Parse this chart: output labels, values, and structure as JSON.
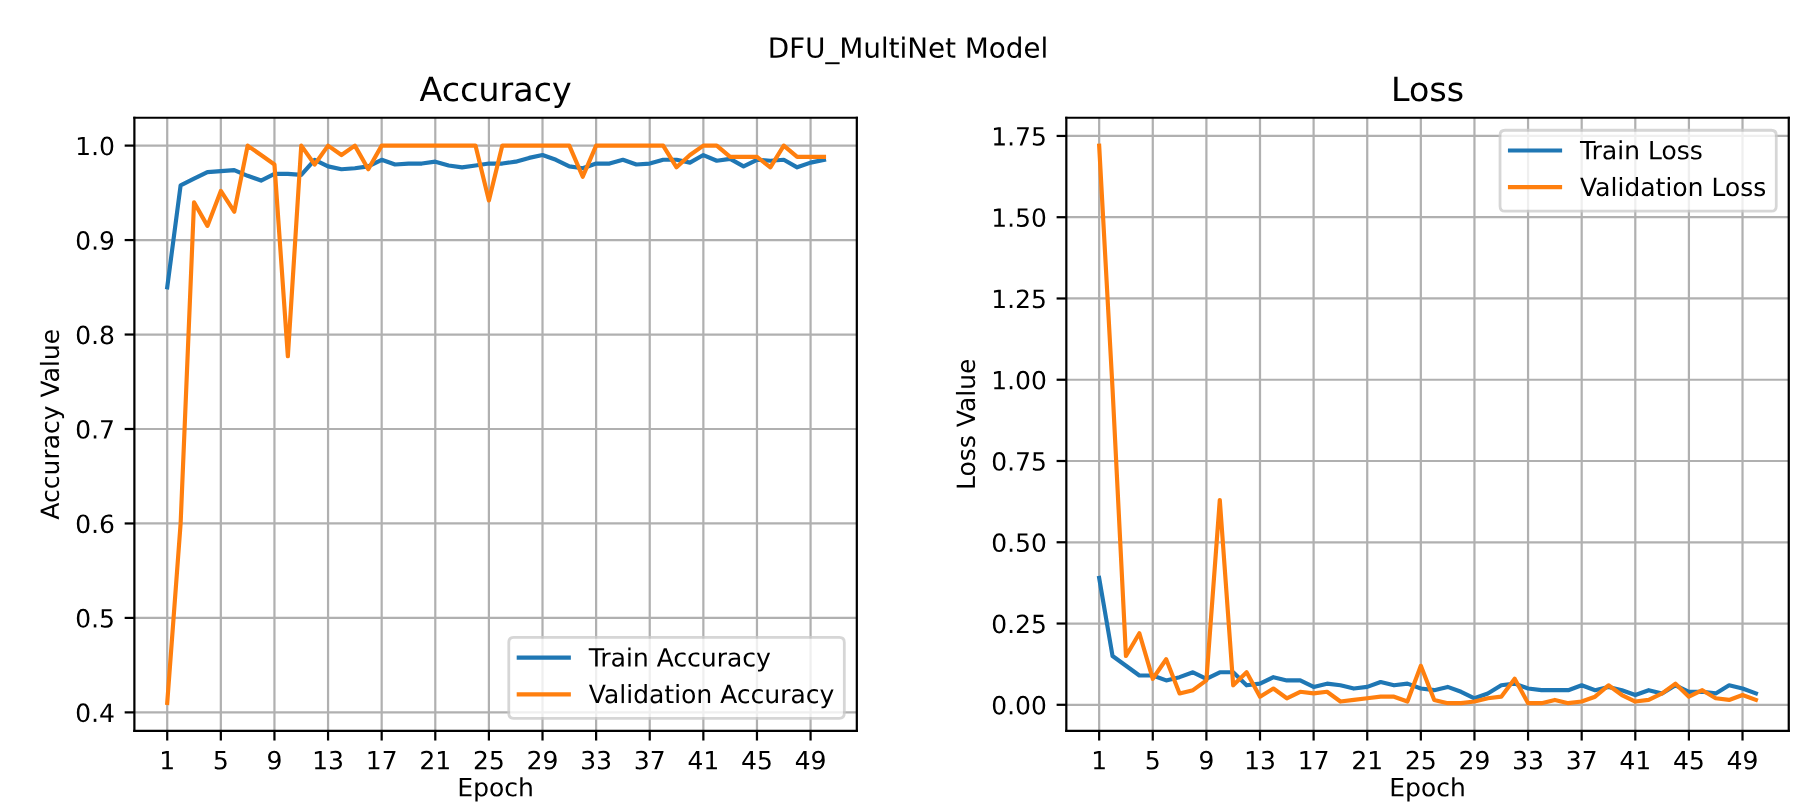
{
  "chart_data": [
    {
      "type": "line",
      "title": "Accuracy",
      "annotations": [
        "DFU_MultiNet Model"
      ],
      "xlabel": "Epoch",
      "ylabel": "Accuracy Value",
      "x": [
        1,
        2,
        3,
        4,
        5,
        6,
        7,
        8,
        9,
        10,
        11,
        12,
        13,
        14,
        15,
        16,
        17,
        18,
        19,
        20,
        21,
        22,
        23,
        24,
        25,
        26,
        27,
        28,
        29,
        30,
        31,
        32,
        33,
        34,
        35,
        36,
        37,
        38,
        39,
        40,
        41,
        42,
        43,
        44,
        45,
        46,
        47,
        48,
        49,
        50
      ],
      "series": [
        {
          "name": "Train Accuracy",
          "color": "#1f77b4",
          "values": [
            0.85,
            0.958,
            0.965,
            0.972,
            0.973,
            0.974,
            0.968,
            0.963,
            0.97,
            0.97,
            0.969,
            0.985,
            0.978,
            0.975,
            0.976,
            0.978,
            0.985,
            0.98,
            0.981,
            0.981,
            0.983,
            0.979,
            0.977,
            0.979,
            0.981,
            0.981,
            0.983,
            0.987,
            0.99,
            0.985,
            0.978,
            0.976,
            0.981,
            0.981,
            0.985,
            0.98,
            0.981,
            0.985,
            0.985,
            0.982,
            0.99,
            0.984,
            0.986,
            0.978,
            0.985,
            0.984,
            0.985,
            0.977,
            0.982,
            0.985
          ]
        },
        {
          "name": "Validation Accuracy",
          "color": "#ff7f0e",
          "values": [
            0.41,
            0.6,
            0.94,
            0.915,
            0.952,
            0.93,
            1.0,
            0.99,
            0.98,
            0.777,
            1.0,
            0.98,
            1.0,
            0.99,
            1.0,
            0.975,
            1.0,
            1.0,
            1.0,
            1.0,
            1.0,
            1.0,
            1.0,
            1.0,
            0.942,
            1.0,
            1.0,
            1.0,
            1.0,
            1.0,
            1.0,
            0.967,
            1.0,
            1.0,
            1.0,
            1.0,
            1.0,
            1.0,
            0.977,
            0.99,
            1.0,
            1.0,
            0.988,
            0.988,
            0.988,
            0.977,
            1.0,
            0.988,
            0.988,
            0.988
          ]
        }
      ],
      "xlim": [
        -1.45,
        52.45
      ],
      "xticks": [
        1,
        5,
        9,
        13,
        17,
        21,
        25,
        29,
        33,
        37,
        41,
        45,
        49
      ],
      "ylim": [
        0.3805,
        1.0295
      ],
      "yticks": [
        {
          "value": 0.4,
          "label": "0.4"
        },
        {
          "value": 0.5,
          "label": "0.5"
        },
        {
          "value": 0.6,
          "label": "0.6"
        },
        {
          "value": 0.7,
          "label": "0.7"
        },
        {
          "value": 0.8,
          "label": "0.8"
        },
        {
          "value": 0.9,
          "label": "0.9"
        },
        {
          "value": 1.0,
          "label": "1.0"
        }
      ],
      "grid": true,
      "legend": "bottom right",
      "line_style": "solid"
    },
    {
      "type": "line",
      "title": "Loss",
      "xlabel": "Epoch",
      "ylabel": "Loss Value",
      "x": [
        1,
        2,
        3,
        4,
        5,
        6,
        7,
        8,
        9,
        10,
        11,
        12,
        13,
        14,
        15,
        16,
        17,
        18,
        19,
        20,
        21,
        22,
        23,
        24,
        25,
        26,
        27,
        28,
        29,
        30,
        31,
        32,
        33,
        34,
        35,
        36,
        37,
        38,
        39,
        40,
        41,
        42,
        43,
        44,
        45,
        46,
        47,
        48,
        49,
        50
      ],
      "series": [
        {
          "name": "Train Loss",
          "color": "#1f77b4",
          "values": [
            0.39,
            0.15,
            0.12,
            0.09,
            0.09,
            0.075,
            0.085,
            0.1,
            0.08,
            0.1,
            0.1,
            0.06,
            0.065,
            0.085,
            0.075,
            0.075,
            0.055,
            0.065,
            0.06,
            0.05,
            0.055,
            0.07,
            0.06,
            0.065,
            0.05,
            0.045,
            0.055,
            0.04,
            0.02,
            0.035,
            0.06,
            0.065,
            0.05,
            0.045,
            0.045,
            0.045,
            0.06,
            0.045,
            0.055,
            0.045,
            0.03,
            0.045,
            0.035,
            0.06,
            0.04,
            0.04,
            0.035,
            0.06,
            0.05,
            0.035
          ]
        },
        {
          "name": "Validation Loss",
          "color": "#ff7f0e",
          "values": [
            1.72,
            0.97,
            0.15,
            0.22,
            0.08,
            0.14,
            0.035,
            0.045,
            0.075,
            0.63,
            0.06,
            0.1,
            0.025,
            0.05,
            0.02,
            0.04,
            0.035,
            0.04,
            0.01,
            0.015,
            0.02,
            0.025,
            0.025,
            0.01,
            0.12,
            0.015,
            0.005,
            0.005,
            0.01,
            0.02,
            0.025,
            0.08,
            0.005,
            0.005,
            0.015,
            0.005,
            0.01,
            0.025,
            0.06,
            0.03,
            0.01,
            0.015,
            0.035,
            0.065,
            0.025,
            0.045,
            0.02,
            0.015,
            0.03,
            0.015
          ]
        }
      ],
      "xlim": [
        -1.45,
        52.45
      ],
      "xticks": [
        1,
        5,
        9,
        13,
        17,
        21,
        25,
        29,
        33,
        37,
        41,
        45,
        49
      ],
      "ylim": [
        -0.08,
        1.806
      ],
      "yticks": [
        {
          "value": 0,
          "label": "0.00"
        },
        {
          "value": 0.25,
          "label": "0.25"
        },
        {
          "value": 0.5,
          "label": "0.50"
        },
        {
          "value": 0.75,
          "label": "0.75"
        },
        {
          "value": 1.0,
          "label": "1.00"
        },
        {
          "value": 1.25,
          "label": "1.25"
        },
        {
          "value": 1.5,
          "label": "1.50"
        },
        {
          "value": 1.75,
          "label": "1.75"
        }
      ],
      "grid": true,
      "legend": "top right",
      "line_style": "solid"
    }
  ]
}
